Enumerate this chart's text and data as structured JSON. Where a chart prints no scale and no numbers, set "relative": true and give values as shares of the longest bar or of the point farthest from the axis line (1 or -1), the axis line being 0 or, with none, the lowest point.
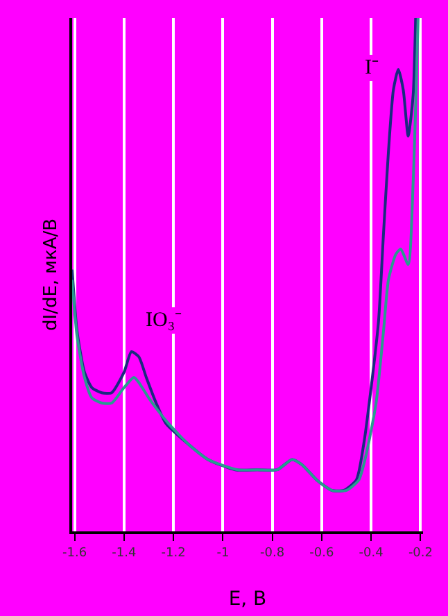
{
  "chart_data": {
    "type": "line",
    "relative": true,
    "xlabel": "E, В",
    "ylabel": "dI/dE, мкА/В",
    "xlim": [
      -1.61,
      -0.19
    ],
    "xticks": [
      -1.6,
      -1.4,
      -1.2,
      -1,
      -0.8,
      -0.6,
      -0.4,
      -0.2
    ],
    "grid": "x",
    "marker": "none",
    "line_style": "solid",
    "annotations": [
      "IO₃⁻",
      "I⁻"
    ],
    "series": [
      {
        "color": "#1a2a80",
        "x": [
          -1.61,
          -1.59,
          -1.56,
          -1.53,
          -1.49,
          -1.45,
          -1.4,
          -1.37,
          -1.34,
          -1.31,
          -1.27,
          -1.23,
          -1.14,
          -1.06,
          -0.95,
          -0.86,
          -0.78,
          -0.72,
          -0.68,
          -0.62,
          -0.56,
          -0.51,
          -0.46,
          -0.43,
          -0.4,
          -0.37,
          -0.35,
          -0.33,
          -0.31,
          -0.29,
          -0.27,
          -0.25,
          -0.23,
          -0.22
        ],
        "values": [
          0.51,
          0.39,
          0.31,
          0.28,
          0.27,
          0.27,
          0.31,
          0.35,
          0.34,
          0.3,
          0.25,
          0.21,
          0.17,
          0.14,
          0.12,
          0.12,
          0.12,
          0.14,
          0.13,
          0.1,
          0.08,
          0.08,
          0.1,
          0.17,
          0.28,
          0.41,
          0.58,
          0.74,
          0.86,
          0.9,
          0.86,
          0.77,
          0.85,
          1.0
        ]
      },
      {
        "color": "#2a9a90",
        "x": [
          -1.61,
          -1.59,
          -1.56,
          -1.53,
          -1.49,
          -1.45,
          -1.4,
          -1.36,
          -1.34,
          -1.3,
          -1.27,
          -1.22,
          -1.14,
          -1.06,
          -0.94,
          -0.86,
          -0.78,
          -0.72,
          -0.68,
          -0.62,
          -0.56,
          -0.5,
          -0.45,
          -0.42,
          -0.38,
          -0.35,
          -0.33,
          -0.3,
          -0.28,
          -0.25,
          -0.23,
          -0.21
        ],
        "values": [
          0.49,
          0.38,
          0.3,
          0.26,
          0.25,
          0.25,
          0.28,
          0.3,
          0.29,
          0.26,
          0.24,
          0.21,
          0.17,
          0.14,
          0.12,
          0.12,
          0.12,
          0.14,
          0.13,
          0.1,
          0.08,
          0.08,
          0.1,
          0.15,
          0.25,
          0.39,
          0.49,
          0.54,
          0.55,
          0.52,
          0.68,
          1.0
        ]
      }
    ]
  }
}
